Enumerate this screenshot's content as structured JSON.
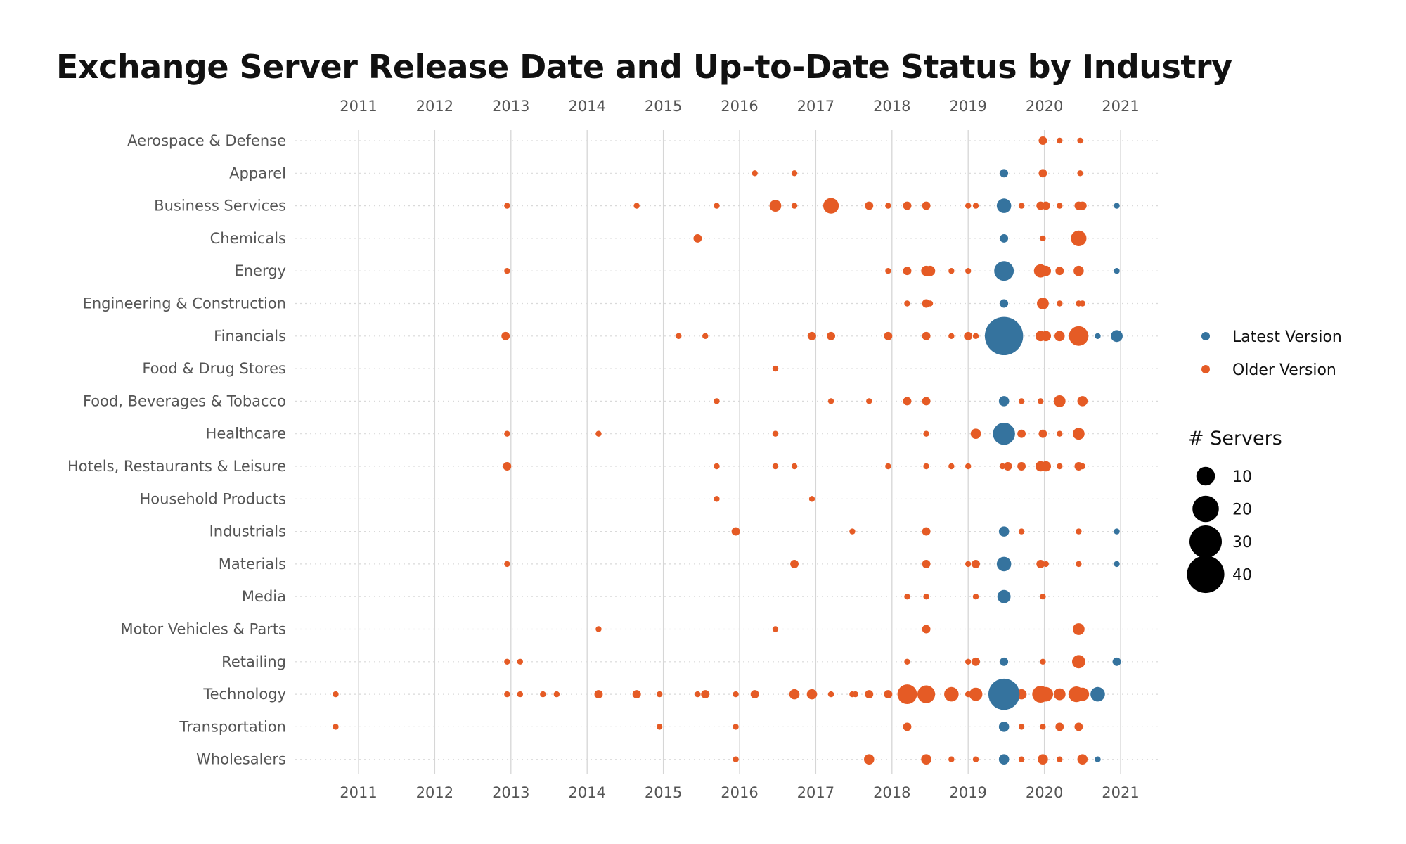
{
  "chart_data": {
    "type": "scatter",
    "title": "Exchange Server Release Date and Up-to-Date Status by Industry",
    "xlabel": "",
    "ylabel": "",
    "x_ticks": [
      "2011",
      "2012",
      "2013",
      "2014",
      "2015",
      "2016",
      "2017",
      "2018",
      "2019",
      "2020",
      "2021"
    ],
    "xlim": [
      2010.6,
      2021.5
    ],
    "categories": [
      "Aerospace & Defense",
      "Apparel",
      "Business Services",
      "Chemicals",
      "Energy",
      "Engineering & Construction",
      "Financials",
      "Food & Drug Stores",
      "Food, Beverages & Tobacco",
      "Healthcare",
      "Hotels, Restaurants & Leisure",
      "Household Products",
      "Industrials",
      "Materials",
      "Media",
      "Motor Vehicles & Parts",
      "Retailing",
      "Technology",
      "Transportation",
      "Wholesalers"
    ],
    "grid": "vertical gridlines at each year; dotted horizontal guide per industry",
    "tick_position": "top and bottom",
    "legend": {
      "placement": "right",
      "color_items": [
        {
          "label": "Latest Version",
          "color": "#35739e"
        },
        {
          "label": "Older Version",
          "color": "#e55b25"
        }
      ],
      "size_title": "# Servers",
      "size_items": [
        10,
        20,
        30,
        40
      ]
    },
    "series": [
      {
        "name": "Older Version",
        "color": "#e55b25",
        "points": [
          [
            "Aerospace & Defense",
            2019.98,
            2
          ],
          [
            "Aerospace & Defense",
            2020.2,
            1
          ],
          [
            "Aerospace & Defense",
            2020.47,
            1
          ],
          [
            "Apparel",
            2016.2,
            1
          ],
          [
            "Apparel",
            2016.72,
            1
          ],
          [
            "Apparel",
            2019.98,
            2
          ],
          [
            "Apparel",
            2020.47,
            1
          ],
          [
            "Business Services",
            2012.95,
            1
          ],
          [
            "Business Services",
            2014.65,
            1
          ],
          [
            "Business Services",
            2015.7,
            1
          ],
          [
            "Business Services",
            2016.47,
            4
          ],
          [
            "Business Services",
            2016.72,
            1
          ],
          [
            "Business Services",
            2017.2,
            7
          ],
          [
            "Business Services",
            2017.7,
            2
          ],
          [
            "Business Services",
            2017.95,
            1
          ],
          [
            "Business Services",
            2018.2,
            2
          ],
          [
            "Business Services",
            2018.45,
            2
          ],
          [
            "Business Services",
            2019.0,
            1
          ],
          [
            "Business Services",
            2019.1,
            1
          ],
          [
            "Business Services",
            2019.7,
            1
          ],
          [
            "Business Services",
            2019.95,
            2
          ],
          [
            "Business Services",
            2020.02,
            2
          ],
          [
            "Business Services",
            2020.2,
            1
          ],
          [
            "Business Services",
            2020.45,
            2
          ],
          [
            "Business Services",
            2020.5,
            2
          ],
          [
            "Chemicals",
            2015.45,
            2
          ],
          [
            "Chemicals",
            2019.47,
            1
          ],
          [
            "Chemicals",
            2019.98,
            1
          ],
          [
            "Chemicals",
            2020.45,
            7
          ],
          [
            "Energy",
            2012.95,
            1
          ],
          [
            "Energy",
            2017.95,
            1
          ],
          [
            "Energy",
            2018.2,
            2
          ],
          [
            "Energy",
            2018.45,
            3
          ],
          [
            "Energy",
            2018.5,
            3
          ],
          [
            "Energy",
            2018.78,
            1
          ],
          [
            "Energy",
            2019.0,
            1
          ],
          [
            "Energy",
            2019.5,
            2
          ],
          [
            "Energy",
            2019.95,
            5
          ],
          [
            "Energy",
            2020.02,
            3
          ],
          [
            "Energy",
            2020.2,
            2
          ],
          [
            "Energy",
            2020.45,
            3
          ],
          [
            "Engineering & Construction",
            2018.2,
            1
          ],
          [
            "Engineering & Construction",
            2018.45,
            2
          ],
          [
            "Engineering & Construction",
            2018.5,
            1
          ],
          [
            "Engineering & Construction",
            2019.98,
            4
          ],
          [
            "Engineering & Construction",
            2020.2,
            1
          ],
          [
            "Engineering & Construction",
            2020.45,
            1
          ],
          [
            "Engineering & Construction",
            2020.5,
            1
          ],
          [
            "Financials",
            2012.93,
            2
          ],
          [
            "Financials",
            2015.2,
            1
          ],
          [
            "Financials",
            2015.55,
            1
          ],
          [
            "Financials",
            2016.95,
            2
          ],
          [
            "Financials",
            2017.2,
            2
          ],
          [
            "Financials",
            2017.95,
            2
          ],
          [
            "Financials",
            2018.45,
            2
          ],
          [
            "Financials",
            2018.78,
            1
          ],
          [
            "Financials",
            2019.0,
            2
          ],
          [
            "Financials",
            2019.1,
            1
          ],
          [
            "Financials",
            2019.47,
            1
          ],
          [
            "Financials",
            2019.95,
            3
          ],
          [
            "Financials",
            2020.02,
            3
          ],
          [
            "Financials",
            2020.2,
            3
          ],
          [
            "Financials",
            2020.45,
            11
          ],
          [
            "Food & Drug Stores",
            2016.47,
            1
          ],
          [
            "Food, Beverages & Tobacco",
            2015.7,
            1
          ],
          [
            "Food, Beverages & Tobacco",
            2017.2,
            1
          ],
          [
            "Food, Beverages & Tobacco",
            2017.7,
            1
          ],
          [
            "Food, Beverages & Tobacco",
            2018.2,
            2
          ],
          [
            "Food, Beverages & Tobacco",
            2018.45,
            2
          ],
          [
            "Food, Beverages & Tobacco",
            2019.7,
            1
          ],
          [
            "Food, Beverages & Tobacco",
            2019.95,
            1
          ],
          [
            "Food, Beverages & Tobacco",
            2020.2,
            4
          ],
          [
            "Food, Beverages & Tobacco",
            2020.5,
            3
          ],
          [
            "Healthcare",
            2012.95,
            1
          ],
          [
            "Healthcare",
            2014.15,
            1
          ],
          [
            "Healthcare",
            2016.47,
            1
          ],
          [
            "Healthcare",
            2018.45,
            1
          ],
          [
            "Healthcare",
            2019.1,
            3
          ],
          [
            "Healthcare",
            2019.52,
            2
          ],
          [
            "Healthcare",
            2019.7,
            2
          ],
          [
            "Healthcare",
            2019.98,
            2
          ],
          [
            "Healthcare",
            2020.2,
            1
          ],
          [
            "Healthcare",
            2020.45,
            4
          ],
          [
            "Hotels, Restaurants & Leisure",
            2012.95,
            2
          ],
          [
            "Hotels, Restaurants & Leisure",
            2015.7,
            1
          ],
          [
            "Hotels, Restaurants & Leisure",
            2016.47,
            1
          ],
          [
            "Hotels, Restaurants & Leisure",
            2016.72,
            1
          ],
          [
            "Hotels, Restaurants & Leisure",
            2017.95,
            1
          ],
          [
            "Hotels, Restaurants & Leisure",
            2018.45,
            1
          ],
          [
            "Hotels, Restaurants & Leisure",
            2018.78,
            1
          ],
          [
            "Hotels, Restaurants & Leisure",
            2019.0,
            1
          ],
          [
            "Hotels, Restaurants & Leisure",
            2019.45,
            1
          ],
          [
            "Hotels, Restaurants & Leisure",
            2019.52,
            2
          ],
          [
            "Hotels, Restaurants & Leisure",
            2019.7,
            2
          ],
          [
            "Hotels, Restaurants & Leisure",
            2019.95,
            3
          ],
          [
            "Hotels, Restaurants & Leisure",
            2020.02,
            3
          ],
          [
            "Hotels, Restaurants & Leisure",
            2020.2,
            1
          ],
          [
            "Hotels, Restaurants & Leisure",
            2020.45,
            2
          ],
          [
            "Hotels, Restaurants & Leisure",
            2020.5,
            1
          ],
          [
            "Household Products",
            2015.7,
            1
          ],
          [
            "Household Products",
            2016.95,
            1
          ],
          [
            "Industrials",
            2015.95,
            2
          ],
          [
            "Industrials",
            2017.48,
            1
          ],
          [
            "Industrials",
            2018.45,
            2
          ],
          [
            "Industrials",
            2019.7,
            1
          ],
          [
            "Industrials",
            2020.45,
            1
          ],
          [
            "Materials",
            2012.95,
            1
          ],
          [
            "Materials",
            2016.72,
            2
          ],
          [
            "Materials",
            2018.45,
            2
          ],
          [
            "Materials",
            2019.0,
            1
          ],
          [
            "Materials",
            2019.1,
            2
          ],
          [
            "Materials",
            2019.95,
            2
          ],
          [
            "Materials",
            2020.02,
            1
          ],
          [
            "Materials",
            2020.45,
            1
          ],
          [
            "Media",
            2018.2,
            1
          ],
          [
            "Media",
            2018.45,
            1
          ],
          [
            "Media",
            2019.1,
            1
          ],
          [
            "Media",
            2019.98,
            1
          ],
          [
            "Motor Vehicles & Parts",
            2014.15,
            1
          ],
          [
            "Motor Vehicles & Parts",
            2016.47,
            1
          ],
          [
            "Motor Vehicles & Parts",
            2018.45,
            2
          ],
          [
            "Motor Vehicles & Parts",
            2020.45,
            4
          ],
          [
            "Retailing",
            2012.95,
            1
          ],
          [
            "Retailing",
            2013.12,
            1
          ],
          [
            "Retailing",
            2018.2,
            1
          ],
          [
            "Retailing",
            2019.0,
            1
          ],
          [
            "Retailing",
            2019.1,
            2
          ],
          [
            "Retailing",
            2019.98,
            1
          ],
          [
            "Retailing",
            2020.45,
            5
          ],
          [
            "Technology",
            2010.7,
            1
          ],
          [
            "Technology",
            2012.95,
            1
          ],
          [
            "Technology",
            2013.12,
            1
          ],
          [
            "Technology",
            2013.42,
            1
          ],
          [
            "Technology",
            2013.6,
            1
          ],
          [
            "Technology",
            2014.15,
            2
          ],
          [
            "Technology",
            2014.65,
            2
          ],
          [
            "Technology",
            2014.95,
            1
          ],
          [
            "Technology",
            2015.45,
            1
          ],
          [
            "Technology",
            2015.55,
            2
          ],
          [
            "Technology",
            2015.95,
            1
          ],
          [
            "Technology",
            2016.2,
            2
          ],
          [
            "Technology",
            2016.72,
            3
          ],
          [
            "Technology",
            2016.95,
            3
          ],
          [
            "Technology",
            2017.2,
            1
          ],
          [
            "Technology",
            2017.48,
            1
          ],
          [
            "Technology",
            2017.52,
            1
          ],
          [
            "Technology",
            2017.7,
            2
          ],
          [
            "Technology",
            2017.95,
            2
          ],
          [
            "Technology",
            2018.2,
            11
          ],
          [
            "Technology",
            2018.45,
            9
          ],
          [
            "Technology",
            2018.78,
            6
          ],
          [
            "Technology",
            2019.0,
            1
          ],
          [
            "Technology",
            2019.1,
            5
          ],
          [
            "Technology",
            2019.45,
            2
          ],
          [
            "Technology",
            2019.52,
            2
          ],
          [
            "Technology",
            2019.7,
            3
          ],
          [
            "Technology",
            2019.95,
            8
          ],
          [
            "Technology",
            2020.02,
            6
          ],
          [
            "Technology",
            2020.2,
            4
          ],
          [
            "Technology",
            2020.42,
            7
          ],
          [
            "Technology",
            2020.5,
            5
          ],
          [
            "Transportation",
            2010.7,
            1
          ],
          [
            "Transportation",
            2014.95,
            1
          ],
          [
            "Transportation",
            2015.95,
            1
          ],
          [
            "Transportation",
            2018.2,
            2
          ],
          [
            "Transportation",
            2019.7,
            1
          ],
          [
            "Transportation",
            2019.98,
            1
          ],
          [
            "Transportation",
            2020.2,
            2
          ],
          [
            "Transportation",
            2020.45,
            2
          ],
          [
            "Wholesalers",
            2015.95,
            1
          ],
          [
            "Wholesalers",
            2017.7,
            3
          ],
          [
            "Wholesalers",
            2018.45,
            3
          ],
          [
            "Wholesalers",
            2018.78,
            1
          ],
          [
            "Wholesalers",
            2019.1,
            1
          ],
          [
            "Wholesalers",
            2019.7,
            1
          ],
          [
            "Wholesalers",
            2019.98,
            3
          ],
          [
            "Wholesalers",
            2020.2,
            1
          ],
          [
            "Wholesalers",
            2020.5,
            3
          ]
        ]
      },
      {
        "name": "Latest Version",
        "color": "#35739e",
        "points": [
          [
            "Apparel",
            2019.47,
            2
          ],
          [
            "Business Services",
            2019.47,
            6
          ],
          [
            "Business Services",
            2020.95,
            1
          ],
          [
            "Chemicals",
            2019.47,
            2
          ],
          [
            "Energy",
            2019.47,
            11
          ],
          [
            "Energy",
            2020.95,
            1
          ],
          [
            "Engineering & Construction",
            2019.47,
            2
          ],
          [
            "Financials",
            2019.47,
            42
          ],
          [
            "Financials",
            2020.7,
            1
          ],
          [
            "Financials",
            2020.95,
            4
          ],
          [
            "Food, Beverages & Tobacco",
            2019.47,
            3
          ],
          [
            "Healthcare",
            2019.47,
            14
          ],
          [
            "Industrials",
            2019.47,
            3
          ],
          [
            "Industrials",
            2020.95,
            1
          ],
          [
            "Materials",
            2019.47,
            6
          ],
          [
            "Materials",
            2020.95,
            1
          ],
          [
            "Media",
            2019.47,
            5
          ],
          [
            "Retailing",
            2019.47,
            2
          ],
          [
            "Retailing",
            2020.95,
            2
          ],
          [
            "Technology",
            2019.47,
            28
          ],
          [
            "Technology",
            2020.7,
            6
          ],
          [
            "Transportation",
            2019.47,
            3
          ],
          [
            "Wholesalers",
            2019.47,
            3
          ],
          [
            "Wholesalers",
            2020.7,
            1
          ]
        ]
      }
    ]
  }
}
